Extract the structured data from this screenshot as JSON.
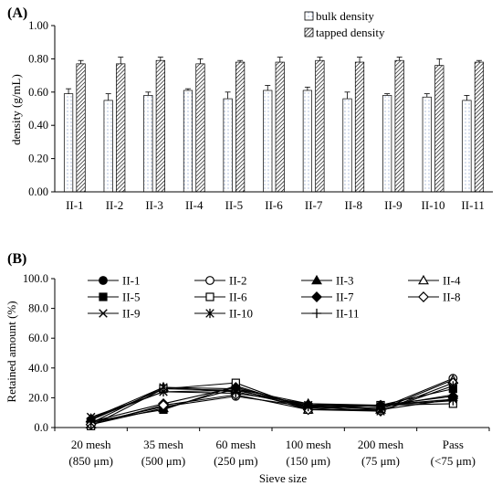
{
  "chart_data": [
    {
      "panel_label": "(A)",
      "type": "bar",
      "ylabel": "density (g/mL)",
      "ylim": [
        0,
        1.0
      ],
      "yticks": [
        "0.00",
        "0.20",
        "0.40",
        "0.60",
        "0.80",
        "1.00"
      ],
      "grid": false,
      "legend_position": "top-right",
      "categories": [
        "II-1",
        "II-2",
        "II-3",
        "II-4",
        "II-5",
        "II-6",
        "II-7",
        "II-8",
        "II-9",
        "II-10",
        "II-11"
      ],
      "series": [
        {
          "name": "bulk density",
          "pattern": "dotted",
          "values": [
            0.59,
            0.55,
            0.58,
            0.61,
            0.56,
            0.61,
            0.61,
            0.56,
            0.58,
            0.57,
            0.55
          ],
          "errors": [
            0.03,
            0.04,
            0.02,
            0.01,
            0.04,
            0.03,
            0.02,
            0.04,
            0.01,
            0.02,
            0.03
          ]
        },
        {
          "name": "tapped density",
          "pattern": "hatched",
          "values": [
            0.77,
            0.77,
            0.79,
            0.77,
            0.78,
            0.78,
            0.79,
            0.78,
            0.79,
            0.76,
            0.78
          ],
          "errors": [
            0.02,
            0.04,
            0.02,
            0.03,
            0.01,
            0.03,
            0.02,
            0.03,
            0.02,
            0.04,
            0.01
          ]
        }
      ]
    },
    {
      "panel_label": "(B)",
      "type": "line",
      "xlabel": "Sieve size",
      "ylabel": "Retained amount (%)",
      "ylim": [
        0,
        100
      ],
      "yticks": [
        "0.0",
        "20.0",
        "40.0",
        "60.0",
        "80.0",
        "100.0"
      ],
      "grid": false,
      "legend_position": "top",
      "categories": [
        {
          "line1": "20 mesh",
          "line2": "(850 μm)"
        },
        {
          "line1": "35 mesh",
          "line2": "(500 μm)"
        },
        {
          "line1": "60 mesh",
          "line2": "(250 μm)"
        },
        {
          "line1": "100 mesh",
          "line2": "(150 μm)"
        },
        {
          "line1": "200 mesh",
          "line2": "(75 μm)"
        },
        {
          "line1": "Pass",
          "line2": "(<75 μm)"
        }
      ],
      "series": [
        {
          "name": "II-1",
          "marker": "circle-filled",
          "values": [
            5,
            26,
            25,
            15,
            15,
            19
          ]
        },
        {
          "name": "II-2",
          "marker": "circle-open",
          "values": [
            3,
            14,
            21,
            14,
            13,
            33
          ]
        },
        {
          "name": "II-3",
          "marker": "triangle-filled",
          "values": [
            6,
            27,
            26,
            16,
            14,
            22
          ]
        },
        {
          "name": "II-4",
          "marker": "triangle-open",
          "values": [
            2,
            13,
            26,
            12,
            12,
            32
          ]
        },
        {
          "name": "II-5",
          "marker": "square-filled",
          "values": [
            4,
            12,
            28,
            13,
            15,
            26
          ]
        },
        {
          "name": "II-6",
          "marker": "square-open",
          "values": [
            1,
            26,
            30,
            12,
            15,
            16
          ]
        },
        {
          "name": "II-7",
          "marker": "diamond-filled",
          "values": [
            4,
            16,
            27,
            14,
            15,
            21
          ]
        },
        {
          "name": "II-8",
          "marker": "diamond-open",
          "values": [
            2,
            15,
            22,
            12,
            11,
            30
          ]
        },
        {
          "name": "II-9",
          "marker": "x",
          "values": [
            7,
            24,
            25,
            15,
            12,
            19
          ]
        },
        {
          "name": "II-10",
          "marker": "asterisk",
          "values": [
            3,
            27,
            24,
            14,
            11,
            28
          ]
        },
        {
          "name": "II-11",
          "marker": "plus",
          "values": [
            6,
            24,
            23,
            16,
            15,
            18
          ]
        }
      ]
    }
  ]
}
